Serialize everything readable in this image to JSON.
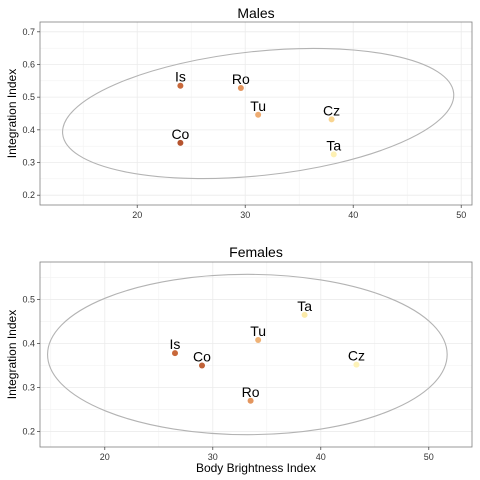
{
  "chart_data": [
    {
      "type": "scatter",
      "title": "Males",
      "xlabel": "",
      "ylabel": "Integration Index",
      "xlim": [
        11,
        51
      ],
      "ylim": [
        0.17,
        0.73
      ],
      "xticks": [
        "20",
        "30",
        "40",
        "50"
      ],
      "yticks": [
        "0.2",
        "0.3",
        "0.4",
        "0.5",
        "0.6",
        "0.7"
      ],
      "grid": true,
      "points": [
        {
          "label": "Is",
          "x": 24.0,
          "y": 0.535,
          "color": "#c8683a"
        },
        {
          "label": "Ro",
          "x": 29.6,
          "y": 0.528,
          "color": "#e3955e"
        },
        {
          "label": "Tu",
          "x": 31.2,
          "y": 0.446,
          "color": "#eeac72"
        },
        {
          "label": "Cz",
          "x": 38.0,
          "y": 0.432,
          "color": "#f8d490"
        },
        {
          "label": "Ta",
          "x": 38.2,
          "y": 0.325,
          "color": "#fdf0b3"
        },
        {
          "label": "Co",
          "x": 24.0,
          "y": 0.36,
          "color": "#b5532e"
        }
      ],
      "ellipse": {
        "cx": 31.2,
        "cy": 0.45,
        "rx": 18.2,
        "ry": 0.19,
        "angle": -6
      }
    },
    {
      "type": "scatter",
      "title": "Females",
      "xlabel": "Body Brightness Index",
      "ylabel": "Integration Index",
      "xlim": [
        14,
        54
      ],
      "ylim": [
        0.165,
        0.585
      ],
      "xticks": [
        "20",
        "30",
        "40",
        "50"
      ],
      "yticks": [
        "0.2",
        "0.3",
        "0.4",
        "0.5"
      ],
      "grid": true,
      "points": [
        {
          "label": "Ta",
          "x": 38.5,
          "y": 0.465,
          "color": "#fbeaa8"
        },
        {
          "label": "Tu",
          "x": 34.2,
          "y": 0.408,
          "color": "#efb276"
        },
        {
          "label": "Is",
          "x": 26.5,
          "y": 0.378,
          "color": "#c8683a"
        },
        {
          "label": "Co",
          "x": 29.0,
          "y": 0.35,
          "color": "#c06238"
        },
        {
          "label": "Cz",
          "x": 43.3,
          "y": 0.352,
          "color": "#fdf2b8"
        },
        {
          "label": "Ro",
          "x": 33.5,
          "y": 0.27,
          "color": "#e3955e"
        }
      ],
      "ellipse": {
        "cx": 33.2,
        "cy": 0.375,
        "rx": 18.5,
        "ry": 0.182,
        "angle": 0
      }
    }
  ]
}
